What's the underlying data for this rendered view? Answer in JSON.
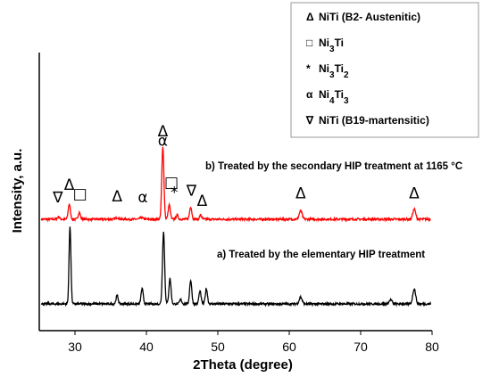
{
  "chart_data": {
    "type": "line",
    "xlabel": "2Theta (degree)",
    "ylabel": "Intensity, a.u.",
    "xlim": [
      25,
      80
    ],
    "x_ticks": [
      "30",
      "40",
      "50",
      "60",
      "70",
      "80"
    ],
    "grid": false,
    "legend_position": "top-right",
    "legend": [
      {
        "symbol": "Δ",
        "text": "NiTi (B2- Austenitic)"
      },
      {
        "symbol": "□",
        "text": "Ni3Ti"
      },
      {
        "symbol": "*",
        "text": "Ni3Ti2"
      },
      {
        "symbol": "α",
        "text": "Ni4Ti3"
      },
      {
        "symbol": "∇",
        "text": "NiTi (B19-martensitic)"
      }
    ],
    "series": [
      {
        "label": "b) Treated by the secondary HIP treatment at 1165 °C",
        "color": "#ff0000",
        "baseline": 1.0,
        "peaks": [
          {
            "x": 27.7,
            "h": 0.03,
            "w": 0.15
          },
          {
            "x": 29.2,
            "h": 0.18,
            "w": 0.15
          },
          {
            "x": 30.6,
            "h": 0.08,
            "w": 0.15
          },
          {
            "x": 35.9,
            "h": 0.02,
            "w": 0.2
          },
          {
            "x": 39.3,
            "h": 0.02,
            "w": 0.2
          },
          {
            "x": 42.3,
            "h": 0.85,
            "w": 0.15
          },
          {
            "x": 43.2,
            "h": 0.17,
            "w": 0.15
          },
          {
            "x": 44.3,
            "h": 0.05,
            "w": 0.15
          },
          {
            "x": 46.2,
            "h": 0.15,
            "w": 0.15
          },
          {
            "x": 47.6,
            "h": 0.05,
            "w": 0.15
          },
          {
            "x": 61.6,
            "h": 0.1,
            "w": 0.2
          },
          {
            "x": 77.5,
            "h": 0.12,
            "w": 0.2
          }
        ]
      },
      {
        "label": "a) Treated by the elementary HIP treatment",
        "color": "#000000",
        "baseline": 0.0,
        "peaks": [
          {
            "x": 29.3,
            "h": 0.92,
            "w": 0.13
          },
          {
            "x": 35.9,
            "h": 0.1,
            "w": 0.15
          },
          {
            "x": 39.4,
            "h": 0.18,
            "w": 0.15
          },
          {
            "x": 42.4,
            "h": 0.85,
            "w": 0.15
          },
          {
            "x": 43.3,
            "h": 0.3,
            "w": 0.15
          },
          {
            "x": 44.8,
            "h": 0.05,
            "w": 0.15
          },
          {
            "x": 46.2,
            "h": 0.28,
            "w": 0.15
          },
          {
            "x": 47.5,
            "h": 0.15,
            "w": 0.15
          },
          {
            "x": 48.4,
            "h": 0.18,
            "w": 0.15
          },
          {
            "x": 61.6,
            "h": 0.08,
            "w": 0.2
          },
          {
            "x": 74.2,
            "h": 0.05,
            "w": 0.2
          },
          {
            "x": 77.5,
            "h": 0.18,
            "w": 0.2
          }
        ]
      }
    ],
    "annotations": [
      {
        "text": "∇",
        "x": 27.6,
        "y": 1.2
      },
      {
        "text": "Δ",
        "x": 29.2,
        "y": 1.35
      },
      {
        "text": "□",
        "x": 30.7,
        "y": 1.24
      },
      {
        "text": "Δ",
        "x": 35.9,
        "y": 1.21
      },
      {
        "text": "α",
        "x": 39.5,
        "y": 1.2
      },
      {
        "text": "Δ",
        "x": 42.3,
        "y": 1.98
      },
      {
        "text": "α",
        "x": 42.3,
        "y": 1.87
      },
      {
        "text": "□",
        "x": 43.5,
        "y": 1.38
      },
      {
        "text": "*",
        "x": 43.9,
        "y": 1.26
      },
      {
        "text": "∇",
        "x": 46.3,
        "y": 1.28
      },
      {
        "text": "Δ",
        "x": 47.8,
        "y": 1.16
      },
      {
        "text": "Δ",
        "x": 61.6,
        "y": 1.25
      },
      {
        "text": "Δ",
        "x": 77.5,
        "y": 1.25
      }
    ]
  }
}
